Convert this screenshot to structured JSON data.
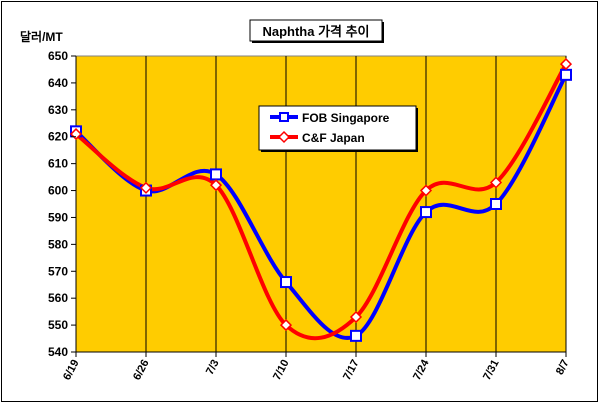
{
  "chart_data": {
    "type": "line",
    "title": "Naphtha 가격 추이",
    "ylabel": "달러/MT",
    "xlabel": "",
    "categories": [
      "6/19",
      "6/26",
      "7/3",
      "7/10",
      "7/17",
      "7/24",
      "7/31",
      "8/7"
    ],
    "ylim": [
      540,
      650
    ],
    "ytick_step": 10,
    "grid": "vertical",
    "legend_position": "top-center",
    "plot_background": "#FFCC00",
    "smoothed": true,
    "series": [
      {
        "name": "FOB Singapore",
        "color": "#0000FF",
        "marker": "square",
        "values": [
          622,
          600,
          606,
          566,
          546,
          592,
          595,
          643
        ]
      },
      {
        "name": "C&F Japan",
        "color": "#FF0000",
        "marker": "diamond",
        "values": [
          621,
          601,
          602,
          550,
          553,
          600,
          603,
          647
        ]
      }
    ]
  }
}
